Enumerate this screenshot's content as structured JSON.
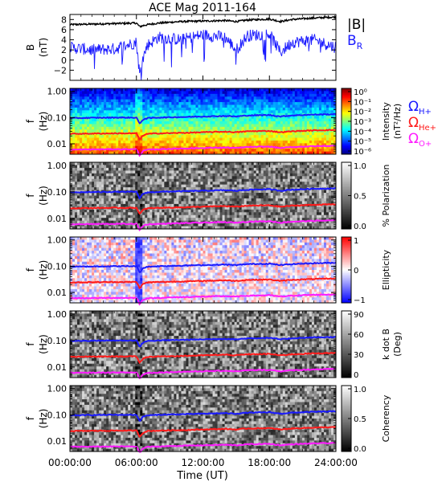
{
  "title": "ACE Mag 2011-164",
  "x_axis": {
    "label": "Time (UT)",
    "ticks": [
      "00:00:00",
      "06:00:00",
      "12:00:00",
      "18:00:00",
      "24:00:00"
    ]
  },
  "freq_ticks": [
    "1.00",
    "0.10",
    "0.01"
  ],
  "legend_top": {
    "btotal": "|B|",
    "br_main": "B",
    "br_sub": "R",
    "btotal_color": "#000000",
    "br_color": "#1a1aff"
  },
  "legend_ions": [
    {
      "main": "Ω",
      "sub": "H+",
      "color": "#1a1aff"
    },
    {
      "main": "Ω",
      "sub": "He+",
      "color": "#ff1a1a"
    },
    {
      "main": "Ω",
      "sub": "O+",
      "color": "#ff1aff"
    }
  ],
  "colors": {
    "h_plus": "#1a1aff",
    "he_plus": "#ff1a1a",
    "o_plus": "#ff1aff"
  },
  "panels": [
    {
      "id": "b-field",
      "ylabel": "B",
      "yunit": "(nT)",
      "colorbar": null
    },
    {
      "id": "intensity",
      "ylabel": "f",
      "yunit": "(Hz)",
      "colorbar": {
        "label": "Intensity",
        "unit": "(nT²/Hz)",
        "scale": "jet",
        "ticks": [
          "10⁰",
          "10⁻¹",
          "10⁻²",
          "10⁻³",
          "10⁻⁴",
          "10⁻⁵",
          "10⁻⁶"
        ]
      }
    },
    {
      "id": "polarization",
      "ylabel": "f",
      "yunit": "(Hz)",
      "colorbar": {
        "label": "% Polarization",
        "unit": "",
        "scale": "gray",
        "ticks": [
          "1.0",
          "0.5",
          "0.0"
        ]
      }
    },
    {
      "id": "ellipticity",
      "ylabel": "f",
      "yunit": "(Hz)",
      "colorbar": {
        "label": "Ellipticity",
        "unit": "",
        "scale": "bwr",
        "ticks": [
          "1",
          "0",
          "−1"
        ]
      }
    },
    {
      "id": "kdotb",
      "ylabel": "f",
      "yunit": "(Hz)",
      "colorbar": {
        "label": "k dot B",
        "unit": "(Deg)",
        "scale": "gray",
        "ticks": [
          "90",
          "60",
          "30",
          "0"
        ]
      }
    },
    {
      "id": "coherency",
      "ylabel": "f",
      "yunit": "(Hz)",
      "colorbar": {
        "label": "Coherency",
        "unit": "",
        "scale": "gray",
        "ticks": [
          "1.0",
          "0.5",
          "0.0"
        ]
      }
    }
  ],
  "chart_data": {
    "type": "line",
    "title": "ACE Mag 2011-164",
    "xlabel": "Time (UT)",
    "xlim": [
      0,
      24
    ],
    "x": [
      0,
      2,
      4,
      6,
      6.3,
      6.6,
      7,
      8,
      10,
      12,
      14,
      15,
      16,
      18,
      19,
      20,
      22,
      24
    ],
    "b_panel": {
      "ylabel": "B (nT)",
      "ylim": [
        -4,
        9
      ],
      "y_ticks": [
        -2,
        0,
        2,
        4,
        6,
        8
      ],
      "series": [
        {
          "name": "|B|",
          "values": [
            7.0,
            7.1,
            7.2,
            7.3,
            6.6,
            6.8,
            7.0,
            7.3,
            7.6,
            7.7,
            7.8,
            7.6,
            7.9,
            8.1,
            7.6,
            8.0,
            8.3,
            8.5
          ]
        },
        {
          "name": "B_R",
          "values": [
            2.5,
            2.0,
            2.2,
            3.5,
            -3.0,
            0.5,
            3.0,
            4.5,
            4.0,
            5.0,
            4.5,
            2.0,
            4.8,
            5.2,
            1.5,
            3.5,
            4.0,
            2.5
          ]
        }
      ]
    },
    "freq_panels": {
      "ylabel": "f (Hz)",
      "scale": "log",
      "ylim": [
        0.004,
        1.3
      ],
      "series": [
        {
          "name": "Ω_H+",
          "values": [
            0.095,
            0.098,
            0.1,
            0.1,
            0.055,
            0.085,
            0.095,
            0.1,
            0.105,
            0.11,
            0.115,
            0.11,
            0.12,
            0.125,
            0.11,
            0.12,
            0.13,
            0.135
          ]
        },
        {
          "name": "Ω_He+",
          "values": [
            0.024,
            0.0245,
            0.025,
            0.025,
            0.014,
            0.021,
            0.024,
            0.025,
            0.026,
            0.0275,
            0.029,
            0.0275,
            0.03,
            0.031,
            0.0275,
            0.03,
            0.0325,
            0.034
          ]
        },
        {
          "name": "Ω_O+",
          "values": [
            0.006,
            0.0061,
            0.0062,
            0.0062,
            0.0035,
            0.0053,
            0.006,
            0.0062,
            0.0066,
            0.0069,
            0.0072,
            0.0069,
            0.0075,
            0.0078,
            0.0069,
            0.0075,
            0.0081,
            0.0084
          ]
        }
      ]
    }
  }
}
